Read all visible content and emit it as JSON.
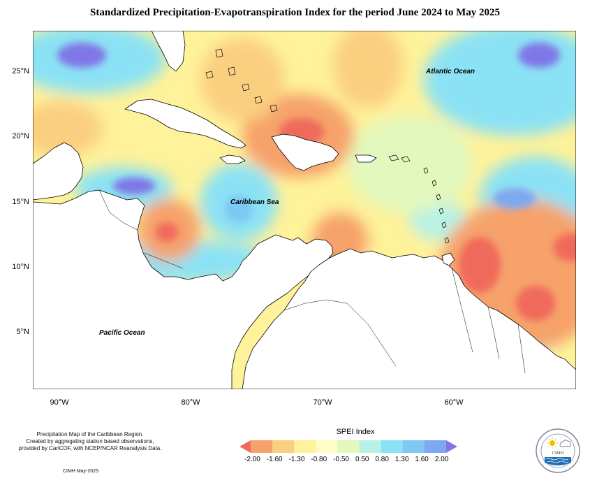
{
  "title": "Standardized Precipitation-Evapotranspiration Index for the period June 2024 to May 2025",
  "map": {
    "lat_labels": [
      "25°N",
      "20°N",
      "15°N",
      "10°N",
      "5°N"
    ],
    "lon_labels": [
      "90°W",
      "80°W",
      "70°W",
      "60°W"
    ],
    "labels": {
      "atlantic": "Atlantic Ocean",
      "caribbean": "Caribbean Sea",
      "pacific": "Pacific Ocean"
    },
    "colors": {
      "very_dry": "#f06a5c",
      "dry": "#f6a26a",
      "moderately_dry": "#fbcf80",
      "near_normal_dry": "#fef29a",
      "near_normal_wet": "#e2f8bd",
      "moderately_wet": "#b8f2e6",
      "wet": "#8be2f4",
      "very_wet": "#7ea8f0",
      "extremely_wet": "#7f77e6",
      "land": "#ffffff"
    }
  },
  "legend": {
    "title": "SPEI Index",
    "labels": [
      "-2.00",
      "-1.60",
      "-1.30",
      "-0.80",
      "-0.50",
      "0.50",
      "0.80",
      "1.30",
      "1.60",
      "2.00"
    ],
    "colors": [
      "#f06a5c",
      "#f6a26a",
      "#fbcf80",
      "#fef29a",
      "#fffcc8",
      "#e2f8bd",
      "#b8f2e6",
      "#8be2f4",
      "#7ec8f4",
      "#7ea8f0",
      "#7f77e6"
    ]
  },
  "credits": {
    "line1": "Precipitation Map of the Caribbean Region.",
    "line2": "Created by aggregating station based observations,",
    "line3": "provided by CariCOF, with NCEP/NCAR Reanalysis Data.",
    "date": "CIMH May-2025"
  },
  "logo": {
    "name": "CIMH"
  }
}
